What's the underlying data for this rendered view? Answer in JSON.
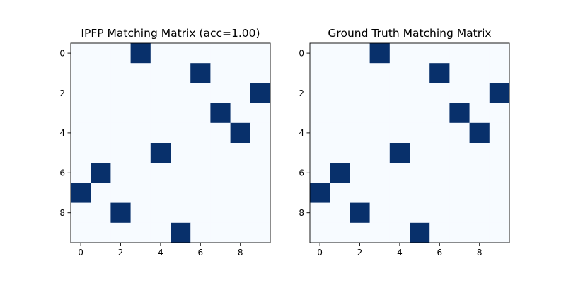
{
  "chart_data": [
    {
      "type": "heatmap",
      "title": "IPFP Matching Matrix (acc=1.00)",
      "xlabel": "",
      "ylabel": "",
      "rows": 10,
      "cols": 10,
      "xticks": [
        0,
        2,
        4,
        6,
        8
      ],
      "yticks": [
        0,
        2,
        4,
        6,
        8
      ],
      "xlim": [
        -0.5,
        9.5
      ],
      "ylim": [
        9.5,
        -0.5
      ],
      "colormap": "Blues",
      "low_color": "#f7fbff",
      "high_color": "#08306b",
      "matrix": [
        [
          0,
          0,
          0,
          1,
          0,
          0,
          0,
          0,
          0,
          0
        ],
        [
          0,
          0,
          0,
          0,
          0,
          0,
          1,
          0,
          0,
          0
        ],
        [
          0,
          0,
          0,
          0,
          0,
          0,
          0,
          0,
          0,
          1
        ],
        [
          0,
          0,
          0,
          0,
          0,
          0,
          0,
          1,
          0,
          0
        ],
        [
          0,
          0,
          0,
          0,
          0,
          0,
          0,
          0,
          1,
          0
        ],
        [
          0,
          0,
          0,
          0,
          1,
          0,
          0,
          0,
          0,
          0
        ],
        [
          0,
          1,
          0,
          0,
          0,
          0,
          0,
          0,
          0,
          0
        ],
        [
          1,
          0,
          0,
          0,
          0,
          0,
          0,
          0,
          0,
          0
        ],
        [
          0,
          0,
          1,
          0,
          0,
          0,
          0,
          0,
          0,
          0
        ],
        [
          0,
          0,
          0,
          0,
          0,
          1,
          0,
          0,
          0,
          0
        ]
      ]
    },
    {
      "type": "heatmap",
      "title": "Ground Truth Matching Matrix",
      "xlabel": "",
      "ylabel": "",
      "rows": 10,
      "cols": 10,
      "xticks": [
        0,
        2,
        4,
        6,
        8
      ],
      "yticks": [
        0,
        2,
        4,
        6,
        8
      ],
      "xlim": [
        -0.5,
        9.5
      ],
      "ylim": [
        9.5,
        -0.5
      ],
      "colormap": "Blues",
      "low_color": "#f7fbff",
      "high_color": "#08306b",
      "matrix": [
        [
          0,
          0,
          0,
          1,
          0,
          0,
          0,
          0,
          0,
          0
        ],
        [
          0,
          0,
          0,
          0,
          0,
          0,
          1,
          0,
          0,
          0
        ],
        [
          0,
          0,
          0,
          0,
          0,
          0,
          0,
          0,
          0,
          1
        ],
        [
          0,
          0,
          0,
          0,
          0,
          0,
          0,
          1,
          0,
          0
        ],
        [
          0,
          0,
          0,
          0,
          0,
          0,
          0,
          0,
          1,
          0
        ],
        [
          0,
          0,
          0,
          0,
          1,
          0,
          0,
          0,
          0,
          0
        ],
        [
          0,
          1,
          0,
          0,
          0,
          0,
          0,
          0,
          0,
          0
        ],
        [
          1,
          0,
          0,
          0,
          0,
          0,
          0,
          0,
          0,
          0
        ],
        [
          0,
          0,
          1,
          0,
          0,
          0,
          0,
          0,
          0,
          0
        ],
        [
          0,
          0,
          0,
          0,
          0,
          1,
          0,
          0,
          0,
          0
        ]
      ]
    }
  ]
}
